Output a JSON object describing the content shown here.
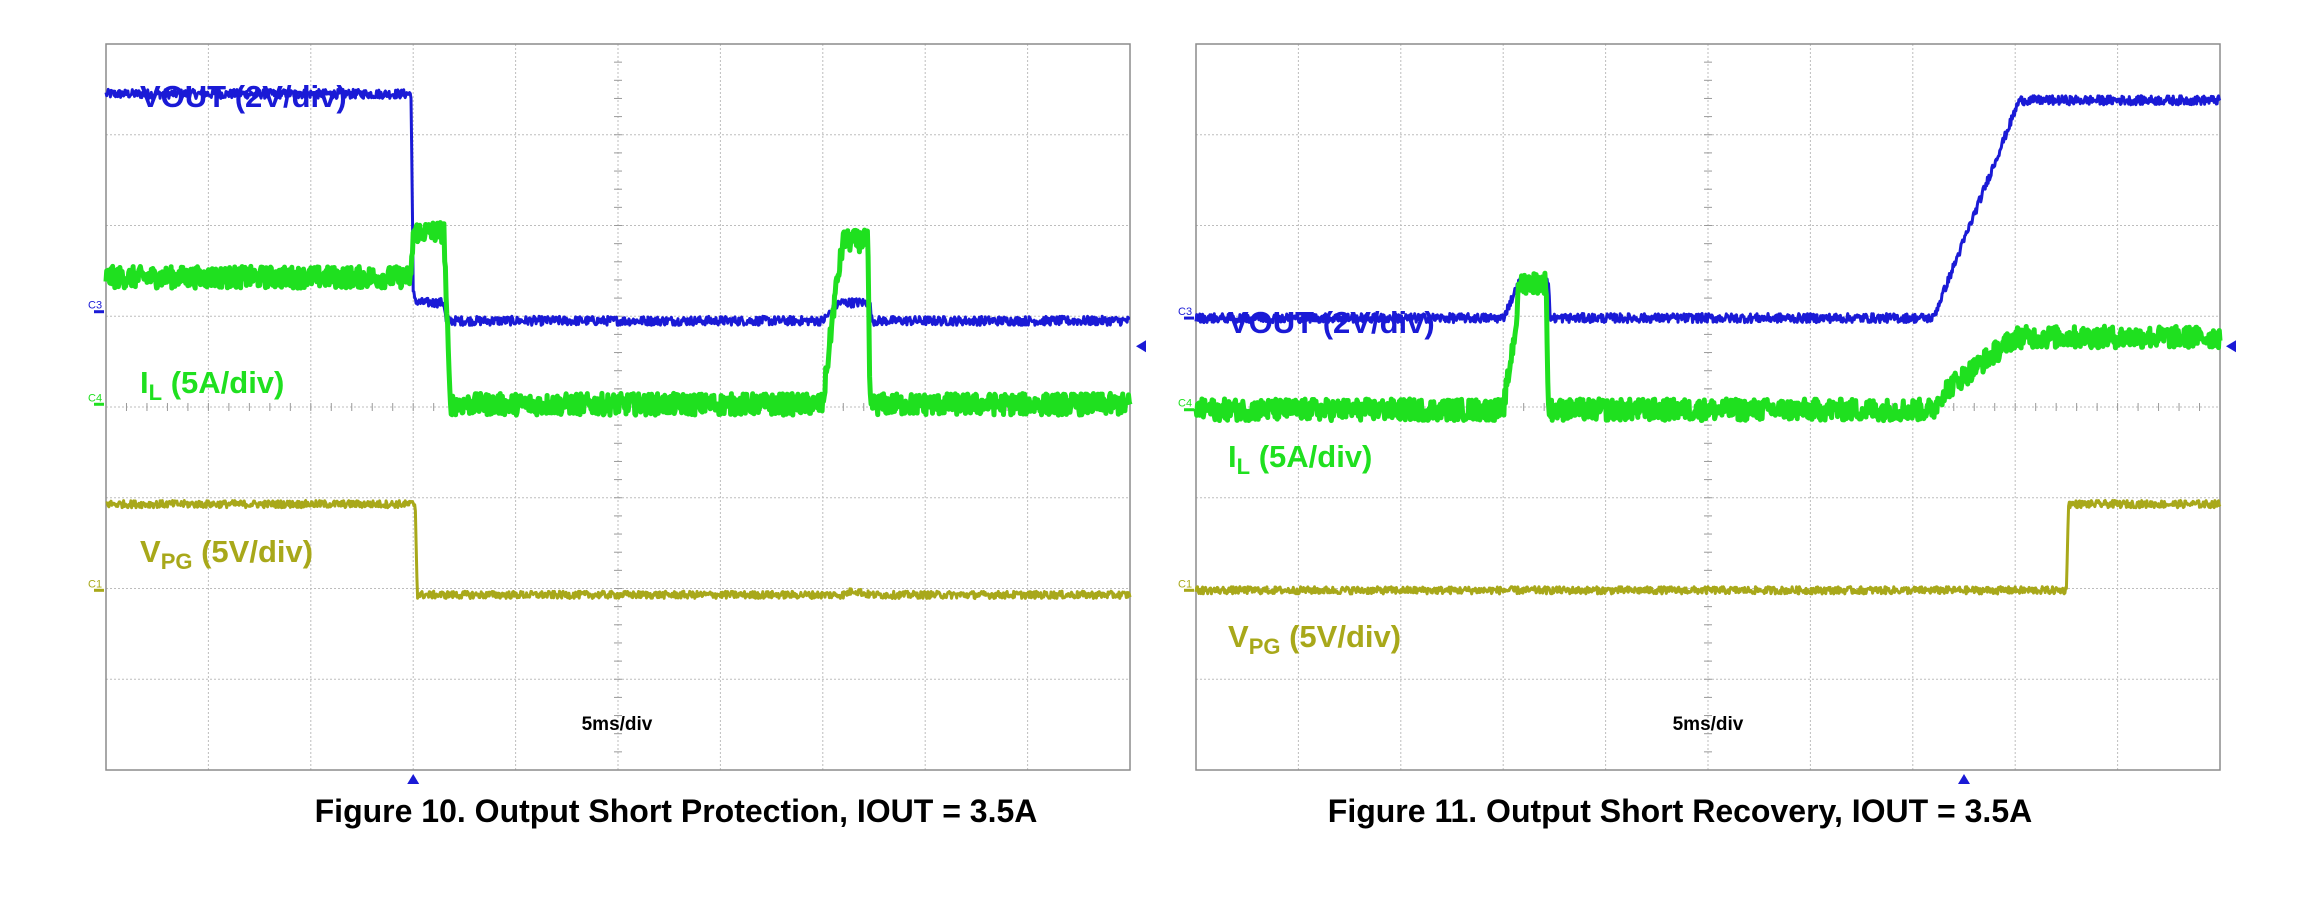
{
  "chart_data": [
    {
      "type": "line",
      "title": "",
      "caption": "Figure 10. Output Short Protection, IOUT = 3.5A",
      "time_scale_label": "5ms/div",
      "grid": true,
      "grid_divisions": {
        "x": 10,
        "y": 8
      },
      "x_range_ms": [
        0,
        50
      ],
      "trigger_time_ms": 15,
      "channel_markers": [
        "C3",
        "C4",
        "C1"
      ],
      "series": [
        {
          "id": "vout",
          "marker": "C3",
          "color": "#1a1ad6",
          "level_div": 5.05,
          "noise": 0.05,
          "label": {
            "main": "VOUT (2V/div)",
            "sub": "",
            "after": ""
          },
          "points": [
            [
              0,
              2.4
            ],
            [
              14.9,
              2.4
            ],
            [
              15.0,
              0.2
            ],
            [
              15.2,
              0.1
            ],
            [
              16.5,
              0.1
            ],
            [
              16.6,
              -0.1
            ],
            [
              35,
              -0.1
            ],
            [
              35.8,
              0.1
            ],
            [
              37.3,
              0.1
            ],
            [
              37.4,
              -0.1
            ],
            [
              50,
              -0.1
            ]
          ]
        },
        {
          "id": "il",
          "marker": "C4",
          "color": "#1fe01f",
          "level_div": 4.03,
          "noise": 0.12,
          "label": {
            "main": "I",
            "sub": "L",
            "after": " (5A/div)"
          },
          "points": [
            [
              0,
              1.4
            ],
            [
              14.9,
              1.4
            ],
            [
              15.0,
              1.9
            ],
            [
              16.5,
              1.9
            ],
            [
              16.8,
              0.0
            ],
            [
              35,
              0.0
            ],
            [
              35.6,
              1.2
            ],
            [
              36.0,
              1.8
            ],
            [
              37.2,
              1.8
            ],
            [
              37.3,
              0.0
            ],
            [
              50,
              0.0
            ]
          ]
        },
        {
          "id": "vpg",
          "marker": "C1",
          "color": "#a8a81a",
          "level_div": 1.98,
          "noise": 0.04,
          "label": {
            "main": "V",
            "sub": "PG",
            "after": " (5V/div)"
          },
          "points": [
            [
              0,
              0.95
            ],
            [
              15.1,
              0.95
            ],
            [
              15.2,
              -0.05
            ],
            [
              36,
              -0.05
            ],
            [
              36.5,
              0.0
            ],
            [
              37.3,
              -0.05
            ],
            [
              50,
              -0.05
            ]
          ]
        }
      ]
    },
    {
      "type": "line",
      "title": "",
      "caption": "Figure 11. Output Short Recovery, IOUT = 3.5A",
      "time_scale_label": "5ms/div",
      "grid": true,
      "grid_divisions": {
        "x": 10,
        "y": 8
      },
      "x_range_ms": [
        0,
        50
      ],
      "trigger_time_ms": 37.5,
      "channel_markers": [
        "C3",
        "C4",
        "C1"
      ],
      "series": [
        {
          "id": "vout",
          "marker": "C3",
          "color": "#1a1ad6",
          "level_div": 4.98,
          "noise": 0.05,
          "label": {
            "main": "VOUT (2V/div)",
            "sub": "",
            "after": ""
          },
          "points": [
            [
              0,
              0.0
            ],
            [
              15,
              0.0
            ],
            [
              15.8,
              0.4
            ],
            [
              17.2,
              0.4
            ],
            [
              17.3,
              0.0
            ],
            [
              36,
              0.0
            ],
            [
              40.2,
              2.4
            ],
            [
              50,
              2.4
            ]
          ]
        },
        {
          "id": "il",
          "marker": "C4",
          "color": "#1fe01f",
          "level_div": 3.97,
          "noise": 0.12,
          "label": {
            "main": "I",
            "sub": "L",
            "after": " (5A/div)"
          },
          "points": [
            [
              0,
              0.0
            ],
            [
              15,
              0.0
            ],
            [
              15.6,
              0.9
            ],
            [
              15.8,
              1.4
            ],
            [
              17.1,
              1.4
            ],
            [
              17.2,
              0.0
            ],
            [
              36,
              0.0
            ],
            [
              36.5,
              0.2
            ],
            [
              40,
              0.8
            ],
            [
              50,
              0.8
            ]
          ]
        },
        {
          "id": "vpg",
          "marker": "C1",
          "color": "#a8a81a",
          "level_div": 1.98,
          "noise": 0.04,
          "label": {
            "main": "V",
            "sub": "PG",
            "after": " (5V/div)"
          },
          "points": [
            [
              0,
              0.0
            ],
            [
              42.5,
              0.0
            ],
            [
              42.6,
              0.95
            ],
            [
              50,
              0.95
            ]
          ]
        }
      ]
    }
  ]
}
